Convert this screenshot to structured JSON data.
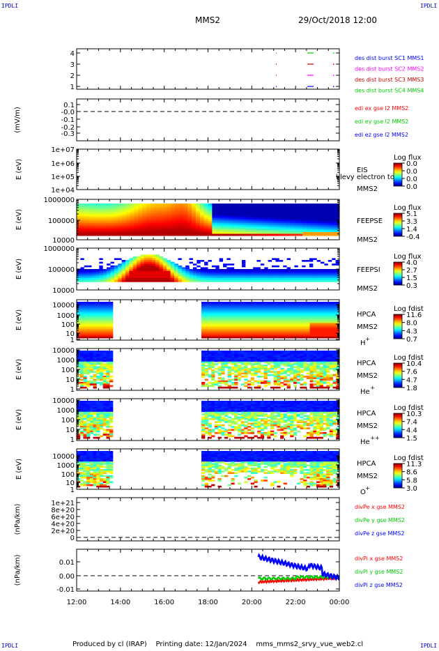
{
  "header": {
    "corner_left_top": "IPDLI",
    "corner_right_top": "IPDLI",
    "corner_left_bottom": "IPDLI",
    "corner_right_bottom": "IPDLI",
    "title_left": "MMS2",
    "title_right": "29/Oct/2018 12:00"
  },
  "footer": {
    "produced_by": "Produced by cl (IRAP)",
    "printing_date": "Printing date: 12/Jan/2024",
    "file_name": "mms_mms2_srvy_vue_web2.cl"
  },
  "colors": {
    "red": "#ff0000",
    "green": "#00cc00",
    "blue": "#0000ff",
    "magenta": "#ff00ff",
    "darkred": "#cc0000"
  },
  "chart_data": {
    "type": "heatmap",
    "x_ticks": [
      "12:00",
      "14:00",
      "16:00",
      "18:00",
      "20:00",
      "22:00",
      "00:00"
    ],
    "panels": [
      {
        "id": "burst",
        "type": "scatter",
        "y_ticks": [
          "4",
          "3",
          "2",
          "1"
        ],
        "legend": [
          {
            "text": "des dist burst SC1 MMS1",
            "color": "#0000ff"
          },
          {
            "text": "des dist burst SC2 MMS2",
            "color": "#ff00ff"
          },
          {
            "text": "des dist burst SC3 MMS3",
            "color": "#cc0000"
          },
          {
            "text": "des dist burst SC4 MMS4",
            "color": "#00cc00"
          }
        ]
      },
      {
        "id": "edi",
        "type": "line",
        "ylabel": "(mV/m)",
        "y_ticks": [
          "0.1",
          "-0.0",
          "-0.1",
          "-0.2",
          "-0.3"
        ],
        "legend": [
          {
            "text": "edi ex gse l2 MMS2",
            "color": "#ff0000"
          },
          {
            "text": "edi ey gse l2 MMS2",
            "color": "#00cc00"
          },
          {
            "text": "edi ez gse l2 MMS2",
            "color": "#0000ff"
          }
        ]
      },
      {
        "id": "eis",
        "type": "heatmap",
        "ylabel": "E (eV)",
        "y_ticks": [
          "1e+07",
          "1e+06",
          "1e+05",
          "1e+04"
        ],
        "name": "EIS",
        "sc": "MMS2",
        "overlay": "l levy electron to",
        "cbar_title": "Log flux",
        "cbar_ticks": [
          "0.0",
          "0.0",
          "0.0",
          "0.0"
        ]
      },
      {
        "id": "feepse",
        "type": "heatmap",
        "ylabel": "E (eV)",
        "y_ticks": [
          "1000000",
          "100000",
          "10000"
        ],
        "name": "FEEPSE",
        "sc": "MMS2",
        "cbar_title": "Log flux",
        "cbar_ticks": [
          "5.1",
          "3.3",
          "1.4",
          "-0.4"
        ]
      },
      {
        "id": "feepsi",
        "type": "heatmap",
        "ylabel": "E (eV)",
        "y_ticks": [
          "1000000",
          "100000",
          "10000"
        ],
        "name": "FEEPSI",
        "sc": "MMS2",
        "cbar_title": "Log flux",
        "cbar_ticks": [
          "4.0",
          "2.7",
          "1.5",
          "0.3"
        ]
      },
      {
        "id": "hpca_h",
        "type": "heatmap",
        "ylabel": "E (eV)",
        "y_ticks": [
          "10000",
          "1000",
          "100",
          "10",
          "1"
        ],
        "name": "HPCA",
        "sc": "MMS2",
        "species": "H",
        "charge": "+",
        "cbar_title": "Log fdist",
        "cbar_ticks": [
          "11.6",
          "8.0",
          "4.3",
          "0.7"
        ]
      },
      {
        "id": "hpca_he1",
        "type": "heatmap",
        "ylabel": "E (eV)",
        "y_ticks": [
          "10000",
          "1000",
          "100",
          "10",
          "1"
        ],
        "name": "HPCA",
        "sc": "MMS2",
        "species": "He",
        "charge": "+",
        "cbar_title": "Log fdist",
        "cbar_ticks": [
          "10.4",
          "7.6",
          "4.7",
          "1.8"
        ]
      },
      {
        "id": "hpca_he2",
        "type": "heatmap",
        "ylabel": "E (eV)",
        "y_ticks": [
          "10000",
          "1000",
          "100",
          "10",
          "1"
        ],
        "name": "HPCA",
        "sc": "MMS2",
        "species": "He",
        "charge": "++",
        "cbar_title": "Log fdist",
        "cbar_ticks": [
          "10.3",
          "7.4",
          "4.4",
          "1.5"
        ]
      },
      {
        "id": "hpca_o",
        "type": "heatmap",
        "ylabel": "E (eV)",
        "y_ticks": [
          "10000",
          "1000",
          "100",
          "10",
          "1"
        ],
        "name": "HPCA",
        "sc": "MMS2",
        "species": "O",
        "charge": "+",
        "cbar_title": "Log fdist",
        "cbar_ticks": [
          "11.3",
          "8.6",
          "5.8",
          "3.0"
        ]
      },
      {
        "id": "divpe",
        "type": "line",
        "ylabel": "(nPa/km)",
        "y_ticks": [
          "1e+21",
          "8e+20",
          "6e+20",
          "4e+20",
          "2e+20",
          "0"
        ],
        "legend": [
          {
            "text": "divPe x gse MMS2",
            "color": "#ff0000"
          },
          {
            "text": "divPe y gse MMS2",
            "color": "#00cc00"
          },
          {
            "text": "divPe z gse MMS2",
            "color": "#0000ff"
          }
        ]
      },
      {
        "id": "divpi",
        "type": "line",
        "ylabel": "(nPa/km)",
        "y_ticks": [
          "0.01",
          "0.00",
          "-0.01"
        ],
        "legend": [
          {
            "text": "divPi x gse MMS2",
            "color": "#ff0000"
          },
          {
            "text": "divPi y gse MMS2",
            "color": "#00cc00"
          },
          {
            "text": "divPi z gse MMS2",
            "color": "#0000ff"
          }
        ]
      }
    ]
  }
}
